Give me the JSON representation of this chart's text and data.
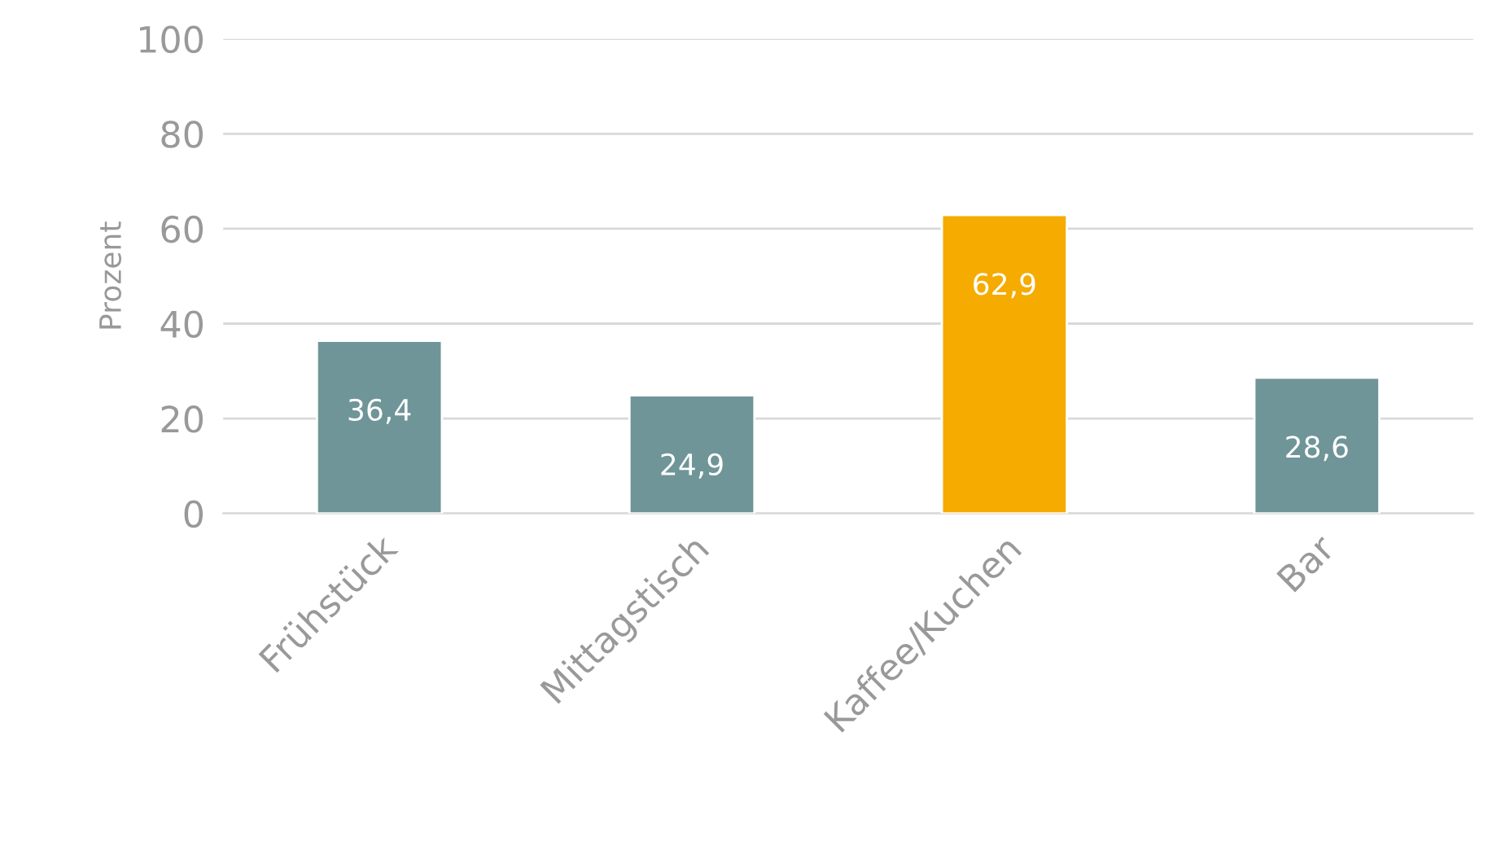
{
  "chart_data": {
    "type": "bar",
    "ylabel": "Prozent",
    "categories": [
      "Frühstück",
      "Mittagstisch",
      "Kaffee/Kuchen",
      "Bar"
    ],
    "values": [
      36.4,
      24.9,
      62.9,
      28.6
    ],
    "colors": [
      "#6f9598",
      "#6f9598",
      "#f5ab00",
      "#6f9598"
    ],
    "value_labels": [
      "36,4",
      "24,9",
      "62,9",
      "28,6"
    ],
    "ylim": [
      0,
      100
    ],
    "yticks": [
      0,
      20,
      40,
      60,
      80,
      100
    ],
    "grid": "y",
    "legend": false
  }
}
